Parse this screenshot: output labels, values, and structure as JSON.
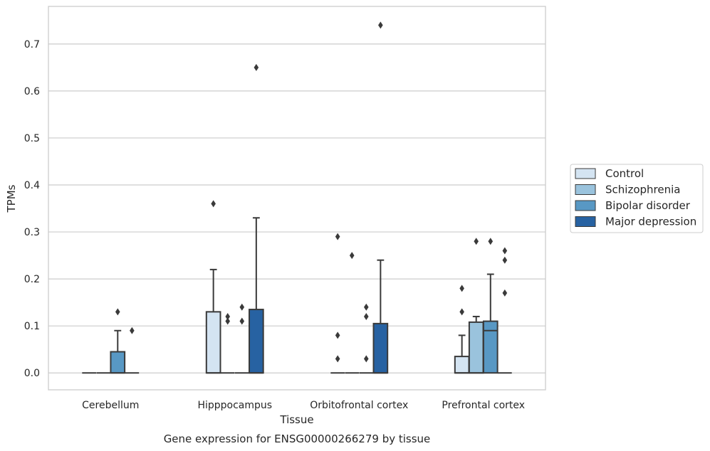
{
  "chart_data": {
    "type": "box",
    "title": "",
    "xlabel": "Tissue",
    "ylabel": "TPMs",
    "caption": "Gene expression for ENSG00000266279 by tissue",
    "ylim": [
      -0.036,
      0.78
    ],
    "yticks": [
      0.0,
      0.1,
      0.2,
      0.3,
      0.4,
      0.5,
      0.6,
      0.7
    ],
    "ytick_labels": [
      "0.0",
      "0.1",
      "0.2",
      "0.3",
      "0.4",
      "0.5",
      "0.6",
      "0.7"
    ],
    "grid": "horizontal",
    "categories": [
      "Cerebellum",
      "Hipppocampus",
      "Orbitofrontal cortex",
      "Prefrontal cortex"
    ],
    "legend": {
      "placement": "right-outside"
    },
    "series": [
      {
        "name": "Control",
        "color": "#d4e4f2",
        "boxes": [
          {
            "q1": 0.0,
            "median": 0.0,
            "q3": 0.0,
            "whisker_low": 0.0,
            "whisker_high": 0.0,
            "outliers": []
          },
          {
            "q1": 0.0,
            "median": 0.0,
            "q3": 0.13,
            "whisker_low": 0.0,
            "whisker_high": 0.22,
            "outliers": [
              0.36
            ]
          },
          {
            "q1": 0.0,
            "median": 0.0,
            "q3": 0.0,
            "whisker_low": 0.0,
            "whisker_high": 0.0,
            "outliers": [
              0.29,
              0.08,
              0.03
            ]
          },
          {
            "q1": 0.0,
            "median": 0.0,
            "q3": 0.035,
            "whisker_low": 0.0,
            "whisker_high": 0.08,
            "outliers": [
              0.18,
              0.13
            ]
          }
        ]
      },
      {
        "name": "Schizophrenia",
        "color": "#9ac3dd",
        "boxes": [
          {
            "q1": 0.0,
            "median": 0.0,
            "q3": 0.0,
            "whisker_low": 0.0,
            "whisker_high": 0.0,
            "outliers": []
          },
          {
            "q1": 0.0,
            "median": 0.0,
            "q3": 0.0,
            "whisker_low": 0.0,
            "whisker_high": 0.0,
            "outliers": [
              0.12,
              0.11
            ]
          },
          {
            "q1": 0.0,
            "median": 0.0,
            "q3": 0.0,
            "whisker_low": 0.0,
            "whisker_high": 0.0,
            "outliers": [
              0.25
            ]
          },
          {
            "q1": 0.0,
            "median": 0.0,
            "q3": 0.108,
            "whisker_low": 0.0,
            "whisker_high": 0.12,
            "outliers": [
              0.28
            ]
          }
        ]
      },
      {
        "name": "Bipolar disorder",
        "color": "#5898c4",
        "boxes": [
          {
            "q1": 0.0,
            "median": 0.0,
            "q3": 0.045,
            "whisker_low": 0.0,
            "whisker_high": 0.09,
            "outliers": [
              0.13
            ]
          },
          {
            "q1": 0.0,
            "median": 0.0,
            "q3": 0.0,
            "whisker_low": 0.0,
            "whisker_high": 0.0,
            "outliers": [
              0.14,
              0.11
            ]
          },
          {
            "q1": 0.0,
            "median": 0.0,
            "q3": 0.0,
            "whisker_low": 0.0,
            "whisker_high": 0.0,
            "outliers": [
              0.14,
              0.12,
              0.03
            ]
          },
          {
            "q1": 0.0,
            "median": 0.09,
            "q3": 0.11,
            "whisker_low": 0.0,
            "whisker_high": 0.21,
            "outliers": [
              0.28
            ]
          }
        ]
      },
      {
        "name": "Major depression",
        "color": "#2762a2",
        "boxes": [
          {
            "q1": 0.0,
            "median": 0.0,
            "q3": 0.0,
            "whisker_low": 0.0,
            "whisker_high": 0.0,
            "outliers": [
              0.09
            ]
          },
          {
            "q1": 0.0,
            "median": 0.0,
            "q3": 0.135,
            "whisker_low": 0.0,
            "whisker_high": 0.33,
            "outliers": [
              0.65
            ]
          },
          {
            "q1": 0.0,
            "median": 0.0,
            "q3": 0.105,
            "whisker_low": 0.0,
            "whisker_high": 0.24,
            "outliers": [
              0.74
            ]
          },
          {
            "q1": 0.0,
            "median": 0.0,
            "q3": 0.0,
            "whisker_low": 0.0,
            "whisker_high": 0.0,
            "outliers": [
              0.26,
              0.24,
              0.17
            ]
          }
        ]
      }
    ]
  }
}
